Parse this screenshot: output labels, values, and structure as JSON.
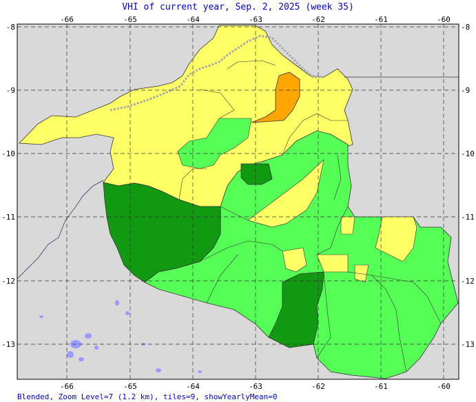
{
  "title": "VHI of current year, Sep. 2, 2025 (week 35)",
  "footer": "Blended, Zoom Level=7 (1.2 km), tiles=9, showYearlyMean=0",
  "axes": {
    "lon_ticks": [
      "-66",
      "-65",
      "-64",
      "-63",
      "-62",
      "-61",
      "-60"
    ],
    "lat_ticks": [
      "-8",
      "-9",
      "-10",
      "-11",
      "-12",
      "-13"
    ]
  },
  "colors": {
    "background": "#d9d9d9",
    "yellow": "#ffff66",
    "orange": "#ffa500",
    "light_green": "#55ff55",
    "dark_green": "#119911",
    "water": "#9999ff",
    "border_dotted": "#aaaaaa"
  }
}
